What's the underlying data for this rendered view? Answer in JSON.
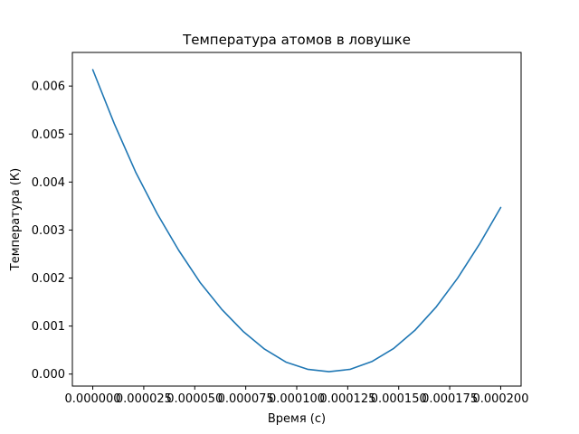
{
  "chart_data": {
    "type": "line",
    "title": "Температура атомов в ловушке",
    "xlabel": "Время (с)",
    "ylabel": "Температура (К)",
    "xlim": [
      -1e-05,
      0.00021
    ],
    "ylim": [
      -0.00025,
      0.0067
    ],
    "xticks": [
      0.0,
      2.5e-05,
      5e-05,
      7.5e-05,
      0.0001,
      0.000125,
      0.00015,
      0.000175,
      0.0002
    ],
    "xtick_labels": [
      "0.000000",
      "0.000025",
      "0.000050",
      "0.000075",
      "0.000100",
      "0.000125",
      "0.000150",
      "0.000175",
      "0.000200"
    ],
    "yticks": [
      0.0,
      0.001,
      0.002,
      0.003,
      0.004,
      0.005,
      0.006
    ],
    "ytick_labels": [
      "0.000",
      "0.001",
      "0.002",
      "0.003",
      "0.004",
      "0.005",
      "0.006"
    ],
    "grid": false,
    "series": [
      {
        "color": "#1f77b4",
        "x": [
          0.0,
          1.05e-05,
          2.1e-05,
          3.16e-05,
          4.21e-05,
          5.26e-05,
          6.32e-05,
          7.37e-05,
          8.42e-05,
          9.47e-05,
          0.0001053,
          0.0001158,
          0.0001263,
          0.0001368,
          0.0001474,
          0.0001579,
          0.0001684,
          0.0001789,
          0.0001895,
          0.0002
        ],
        "y": [
          0.00634,
          0.00522,
          0.00421,
          0.00334,
          0.00258,
          0.00191,
          0.00135,
          0.00089,
          0.00052,
          0.00025,
          0.0001,
          5e-05,
          0.0001,
          0.00026,
          0.00053,
          0.00091,
          0.0014,
          0.002,
          0.0027,
          0.00347
        ]
      }
    ]
  }
}
